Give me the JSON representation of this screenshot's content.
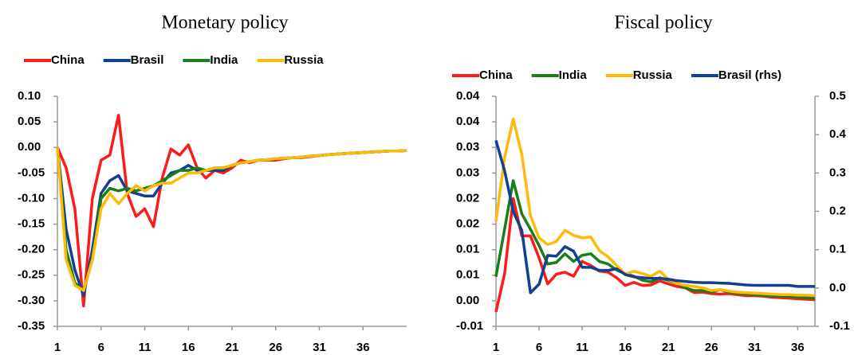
{
  "chart_data": [
    {
      "type": "line",
      "title": "Monetary policy",
      "legend": "top",
      "x": [
        1,
        2,
        3,
        4,
        5,
        6,
        7,
        8,
        9,
        10,
        11,
        12,
        13,
        14,
        15,
        16,
        17,
        18,
        19,
        20,
        21,
        22,
        23,
        24,
        25,
        26,
        27,
        28,
        29,
        30,
        31,
        32,
        33,
        34,
        35,
        36,
        37,
        38,
        39,
        40,
        41
      ],
      "xlim": [
        1,
        41
      ],
      "xticks": [
        1,
        6,
        11,
        16,
        21,
        26,
        31,
        36
      ],
      "ylim": [
        -0.35,
        0.1
      ],
      "yticks": [
        {
          "value": -0.35,
          "label": "-0.35"
        },
        {
          "value": -0.3,
          "label": "-0.30"
        },
        {
          "value": -0.25,
          "label": "-0.25"
        },
        {
          "value": -0.2,
          "label": "-0.20"
        },
        {
          "value": -0.15,
          "label": "-0.15"
        },
        {
          "value": -0.1,
          "label": "-0.10"
        },
        {
          "value": -0.05,
          "label": "-0.05"
        },
        {
          "value": 0,
          "label": "0.00"
        },
        {
          "value": 0.05,
          "label": "0.05"
        },
        {
          "value": 0.1,
          "label": "0.10"
        }
      ],
      "series": [
        {
          "name": "China",
          "color": "#ff1a1a",
          "values": [
            0,
            -0.04,
            -0.12,
            -0.31,
            -0.1,
            -0.025,
            -0.015,
            0.063,
            -0.09,
            -0.135,
            -0.12,
            -0.155,
            -0.06,
            -0.003,
            -0.015,
            0.005,
            -0.04,
            -0.06,
            -0.045,
            -0.05,
            -0.04,
            -0.025,
            -0.03,
            -0.025,
            -0.025,
            -0.025,
            -0.022,
            -0.02,
            -0.02,
            -0.018,
            -0.016,
            -0.014,
            -0.013,
            -0.012,
            -0.011,
            -0.01,
            -0.009,
            -0.008,
            -0.007,
            -0.007,
            -0.006
          ]
        },
        {
          "name": "Brasil",
          "color": "#123f8f",
          "values": [
            0,
            -0.16,
            -0.24,
            -0.29,
            -0.2,
            -0.09,
            -0.065,
            -0.055,
            -0.085,
            -0.09,
            -0.095,
            -0.095,
            -0.07,
            -0.05,
            -0.045,
            -0.035,
            -0.045,
            -0.045,
            -0.045,
            -0.045,
            -0.035,
            -0.03,
            -0.028,
            -0.025,
            -0.024,
            -0.022,
            -0.021,
            -0.02,
            -0.019,
            -0.017,
            -0.016,
            -0.014,
            -0.013,
            -0.012,
            -0.011,
            -0.01,
            -0.009,
            -0.008,
            -0.007,
            -0.007,
            -0.006
          ]
        },
        {
          "name": "India",
          "color": "#1a7f1a",
          "values": [
            0,
            -0.2,
            -0.265,
            -0.28,
            -0.22,
            -0.1,
            -0.08,
            -0.085,
            -0.08,
            -0.085,
            -0.08,
            -0.075,
            -0.065,
            -0.055,
            -0.045,
            -0.045,
            -0.04,
            -0.045,
            -0.04,
            -0.04,
            -0.035,
            -0.03,
            -0.028,
            -0.025,
            -0.024,
            -0.022,
            -0.021,
            -0.02,
            -0.019,
            -0.017,
            -0.016,
            -0.014,
            -0.013,
            -0.012,
            -0.011,
            -0.01,
            -0.009,
            -0.008,
            -0.007,
            -0.007,
            -0.006
          ]
        },
        {
          "name": "Russia",
          "color": "#ffba08",
          "values": [
            0,
            -0.22,
            -0.27,
            -0.28,
            -0.22,
            -0.12,
            -0.09,
            -0.11,
            -0.09,
            -0.075,
            -0.085,
            -0.075,
            -0.07,
            -0.07,
            -0.06,
            -0.05,
            -0.05,
            -0.045,
            -0.04,
            -0.04,
            -0.035,
            -0.03,
            -0.028,
            -0.025,
            -0.024,
            -0.022,
            -0.021,
            -0.02,
            -0.019,
            -0.017,
            -0.016,
            -0.014,
            -0.013,
            -0.012,
            -0.011,
            -0.01,
            -0.009,
            -0.008,
            -0.007,
            -0.007,
            -0.006
          ]
        }
      ]
    },
    {
      "type": "line",
      "title": "Fiscal policy",
      "legend": "top",
      "x": [
        1,
        2,
        3,
        4,
        5,
        6,
        7,
        8,
        9,
        10,
        11,
        12,
        13,
        14,
        15,
        16,
        17,
        18,
        19,
        20,
        21,
        22,
        23,
        24,
        25,
        26,
        27,
        28,
        29,
        30,
        31,
        32,
        33,
        34,
        35,
        36,
        37,
        38
      ],
      "xlim": [
        1,
        38
      ],
      "xticks": [
        1,
        6,
        11,
        16,
        21,
        26,
        31,
        36
      ],
      "ylim": [
        -0.005,
        0.04
      ],
      "yticks": [
        {
          "value": -0.005,
          "label": "-0.01"
        },
        {
          "value": 0,
          "label": "0.00"
        },
        {
          "value": 0.005,
          "label": "0.01"
        },
        {
          "value": 0.01,
          "label": "0.01"
        },
        {
          "value": 0.015,
          "label": "0.02"
        },
        {
          "value": 0.02,
          "label": "0.02"
        },
        {
          "value": 0.025,
          "label": "0.03"
        },
        {
          "value": 0.03,
          "label": "0.03"
        },
        {
          "value": 0.035,
          "label": "0.04"
        },
        {
          "value": 0.04,
          "label": "0.04"
        }
      ],
      "y2lim": [
        -0.1,
        0.5
      ],
      "y2ticks": [
        -0.1,
        {
          "value": 0,
          "label": "0.0"
        },
        0.1,
        0.2,
        0.3,
        0.4,
        0.5
      ],
      "series": [
        {
          "name": "China",
          "color": "#ff1a1a",
          "values": [
            -0.0022,
            0.0053,
            0.02,
            0.0127,
            0.0127,
            0.0084,
            0.0033,
            0.0052,
            0.0056,
            0.0048,
            0.0077,
            0.0069,
            0.0058,
            0.0056,
            0.0045,
            0.003,
            0.0036,
            0.003,
            0.0031,
            0.0039,
            0.0033,
            0.0028,
            0.0025,
            0.0016,
            0.0017,
            0.0014,
            0.0013,
            0.0014,
            0.0012,
            0.001,
            0.001,
            0.0009,
            0.0007,
            0.0006,
            0.0005,
            0.0004,
            0.0003,
            0.0002
          ]
        },
        {
          "name": "India",
          "color": "#1a7f1a",
          "values": [
            0.0047,
            0.014,
            0.0235,
            0.017,
            0.014,
            0.0108,
            0.0072,
            0.0075,
            0.0092,
            0.0077,
            0.0089,
            0.0092,
            0.0077,
            0.0072,
            0.006,
            0.0053,
            0.0048,
            0.004,
            0.0037,
            0.0045,
            0.004,
            0.0034,
            0.0025,
            0.002,
            0.002,
            0.0017,
            0.0022,
            0.0017,
            0.0015,
            0.0013,
            0.0012,
            0.001,
            0.001,
            0.0009,
            0.0008,
            0.0007,
            0.0006,
            0.0005
          ]
        },
        {
          "name": "Russia",
          "color": "#ffba08",
          "values": [
            0.0155,
            0.028,
            0.0356,
            0.0286,
            0.0167,
            0.0123,
            0.011,
            0.0116,
            0.0138,
            0.0128,
            0.0123,
            0.0125,
            0.0098,
            0.0086,
            0.0069,
            0.0052,
            0.0058,
            0.0053,
            0.0048,
            0.0058,
            0.0042,
            0.0034,
            0.003,
            0.0028,
            0.0025,
            0.002,
            0.0022,
            0.0019,
            0.0017,
            0.0016,
            0.0015,
            0.0014,
            0.0013,
            0.0012,
            0.0012,
            0.0011,
            0.0011,
            0.001
          ]
        },
        {
          "name": "Brasil (rhs)",
          "color": "#123f8f",
          "axis": "y2",
          "values": [
            0.385,
            0.306,
            0.2,
            0.15,
            -0.0125,
            0.01,
            0.085,
            0.083,
            0.108,
            0.096,
            0.054,
            0.054,
            0.046,
            0.046,
            0.05,
            0.035,
            0.029,
            0.027,
            0.025,
            0.025,
            0.023,
            0.019,
            0.017,
            0.015,
            0.014,
            0.014,
            0.013,
            0.012,
            0.01,
            0.008,
            0.007,
            0.007,
            0.007,
            0.007,
            0.007,
            0.004,
            0.004,
            0.004
          ]
        }
      ]
    }
  ]
}
